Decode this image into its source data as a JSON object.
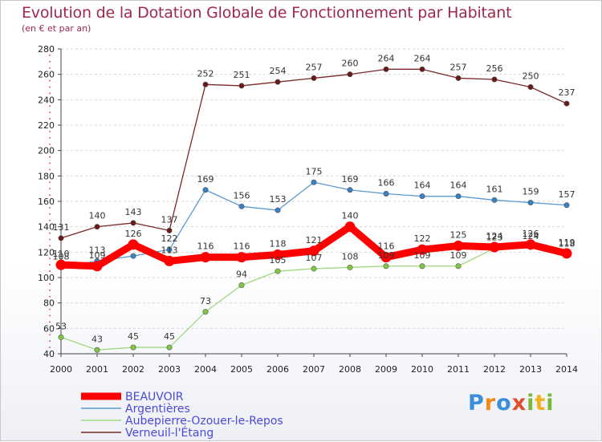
{
  "title": "Evolution de la Dotation Globale de Fonctionnement par Habitant",
  "subtitle": "(en € et par an)",
  "brand": {
    "letters": [
      "P",
      "r",
      "o",
      "x",
      "i",
      "t",
      "i"
    ],
    "colors": [
      "#3a8fd8",
      "#f08a1c",
      "#3a8fd8",
      "#e0502a",
      "#7ab83a",
      "#f0b020",
      "#7ab83a"
    ]
  },
  "chart_data": {
    "type": "line",
    "title": "Evolution de la Dotation Globale de Fonctionnement par Habitant",
    "subtitle": "(en € et par an)",
    "xlabel": "",
    "ylabel": "",
    "x": [
      2000,
      2001,
      2002,
      2003,
      2004,
      2005,
      2006,
      2007,
      2008,
      2009,
      2010,
      2011,
      2012,
      2013,
      2014
    ],
    "x_labels": [
      "2000",
      "2001",
      "2002",
      "2003",
      "2004",
      "2005",
      "2006",
      "2007",
      "2008",
      "2009",
      "2010",
      "2011",
      "2012",
      "2013",
      "2014"
    ],
    "ylim": [
      40,
      280
    ],
    "y_ticks": [
      40,
      60,
      80,
      100,
      120,
      140,
      160,
      180,
      200,
      220,
      240,
      260,
      280
    ],
    "y_tick_labels": [
      "40",
      "60",
      "80",
      "100",
      "120",
      "140",
      "160",
      "180",
      "200",
      "220",
      "240",
      "260",
      "280"
    ],
    "grid": "horizontal",
    "legend_position": "bottom-left",
    "series": [
      {
        "name": "Verneuil-l'Étang",
        "color": "#7a2828",
        "point_color": "#6a1818",
        "emphasis": false,
        "values": [
          131,
          140,
          143,
          137,
          252,
          251,
          254,
          257,
          260,
          264,
          264,
          257,
          256,
          250,
          237
        ],
        "labels": [
          "131",
          "140",
          "143",
          "137",
          "252",
          "251",
          "254",
          "257",
          "260",
          "264",
          "264",
          "257",
          "256",
          "250",
          "237"
        ]
      },
      {
        "name": "Argentières",
        "color": "#5a9ad0",
        "point_color": "#3a80c8",
        "emphasis": false,
        "values": [
          108,
          113,
          117,
          122,
          169,
          156,
          153,
          175,
          169,
          166,
          164,
          164,
          161,
          159,
          157
        ],
        "labels": [
          "108",
          "113",
          "",
          "122",
          "169",
          "156",
          "153",
          "175",
          "169",
          "166",
          "164",
          "164",
          "161",
          "159",
          "157"
        ]
      },
      {
        "name": "Aubepierre-Ozouer-le-Repos",
        "color": "#a0d880",
        "point_color": "#80c840",
        "emphasis": false,
        "values": [
          53,
          43,
          45,
          45,
          73,
          94,
          105,
          107,
          108,
          109,
          109,
          109,
          123,
          124,
          118
        ],
        "labels": [
          "53",
          "43",
          "45",
          "45",
          "73",
          "94",
          "105",
          "107",
          "108",
          "109",
          "109",
          "109",
          "123",
          "124",
          "118"
        ]
      },
      {
        "name": "BEAUVOIR",
        "color": "#ff0000",
        "point_color": "#ff0000",
        "emphasis": true,
        "values": [
          110,
          109,
          126,
          113,
          116,
          116,
          118,
          121,
          140,
          116,
          122,
          125,
          124,
          126,
          119
        ],
        "labels": [
          "110",
          "109",
          "126",
          "113",
          "116",
          "116",
          "118",
          "121",
          "140",
          "116",
          "122",
          "125",
          "124",
          "126",
          "119"
        ]
      }
    ],
    "legend": [
      "BEAUVOIR",
      "Argentières",
      "Aubepierre-Ozouer-le-Repos",
      "Verneuil-l'Étang"
    ]
  }
}
